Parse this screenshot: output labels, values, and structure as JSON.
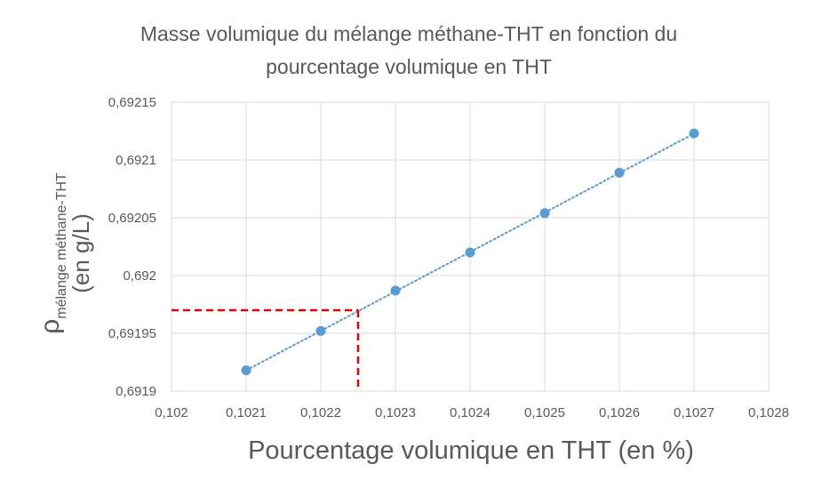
{
  "chart_data": {
    "type": "scatter",
    "title_line1": "Masse volumique du mélange méthane-THT en fonction du",
    "title_line2": "pourcentage volumique en THT",
    "xlabel": "Pourcentage volumique en THT (en %)",
    "ylabel_symbol": "ρ",
    "ylabel_subscript": "mélange méthane-THT",
    "ylabel_unit": "(en g/L)",
    "xlim": [
      0.102,
      0.1028
    ],
    "ylim": [
      0.6919,
      0.69215
    ],
    "x_ticks": [
      "0,102",
      "0,1021",
      "0,1022",
      "0,1023",
      "0,1024",
      "0,1025",
      "0,1026",
      "0,1027",
      "0,1028"
    ],
    "y_ticks": [
      "0,6919",
      "0,69195",
      "0,692",
      "0,69205",
      "0,6921",
      "0,69215"
    ],
    "grid": true,
    "trendline": "linear-dotted",
    "series": [
      {
        "x": [
          0.1021,
          0.1022,
          0.1023,
          0.1024,
          0.1025,
          0.1026,
          0.1027
        ],
        "y": [
          0.691918,
          0.691952,
          0.691987,
          0.69202,
          0.692054,
          0.692089,
          0.692123
        ]
      }
    ],
    "annotation": {
      "type": "red-dashed-reading-lines",
      "x": 0.10225,
      "y": 0.69197
    },
    "colors": {
      "marker": "#5B9BD5",
      "trendline": "#5B9BD5",
      "grid": "#D9D9D9",
      "annotation": "#E00000",
      "text": "#595959"
    }
  }
}
